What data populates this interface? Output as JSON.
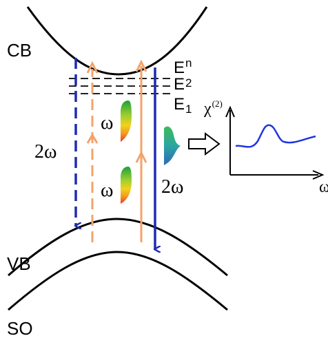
{
  "bands": {
    "cb": "CB",
    "vb": "VB",
    "so": "SO"
  },
  "levels": {
    "en": {
      "base": "E",
      "sub": "n"
    },
    "e2": {
      "base": "E",
      "sub": "2"
    },
    "e1": {
      "base": "E",
      "sub": "1"
    }
  },
  "transitions": {
    "omega_upper": "ω",
    "omega_lower": "ω",
    "two_omega_left": "2ω",
    "two_omega_right": "2ω"
  },
  "inset": {
    "ylabel": {
      "base": "χ",
      "sup": "(2)"
    },
    "xlabel": "ω"
  },
  "colors": {
    "blue_arrow": "#1f2bb0",
    "orange_arrow": "#f2a36b",
    "curve": "#1f35e0",
    "line": "#000000"
  }
}
